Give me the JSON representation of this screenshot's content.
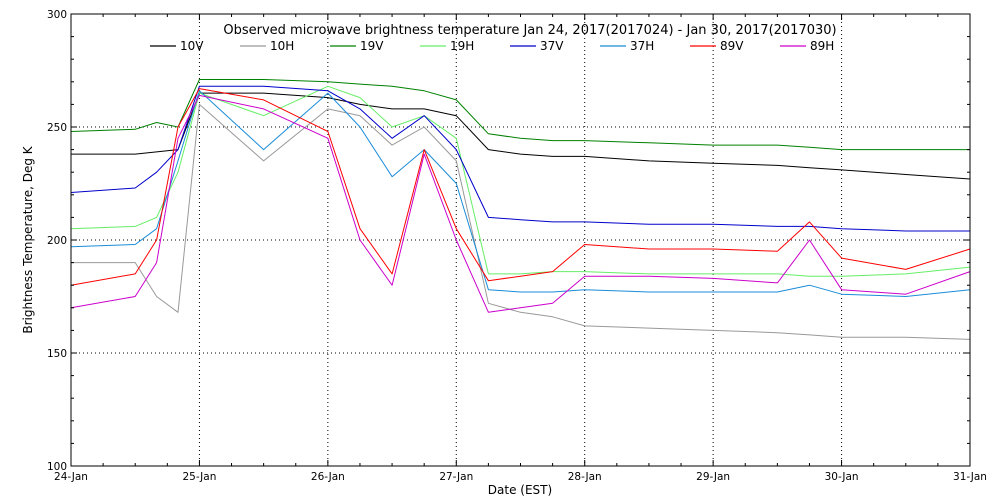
{
  "chart_data": {
    "type": "line",
    "title": "Observed microwave brightness temperature Jan 24, 2017(2017024) - Jan 30, 2017(2017030)",
    "xlabel": "Date (EST)",
    "ylabel": "Brightness Temperature, Deg K",
    "ylim": [
      100,
      300
    ],
    "xlim": [
      "2017-01-24",
      "2017-01-31"
    ],
    "x_ticks": [
      "24-Jan",
      "25-Jan",
      "26-Jan",
      "27-Jan",
      "28-Jan",
      "29-Jan",
      "30-Jan",
      "31-Jan"
    ],
    "y_ticks": [
      100,
      150,
      200,
      250,
      300
    ],
    "grid": true,
    "legend_position": "top",
    "x": [
      "2017-01-24 00:00",
      "2017-01-24 12:00",
      "2017-01-24 16:00",
      "2017-01-24 20:00",
      "2017-01-25 00:00",
      "2017-01-25 12:00",
      "2017-01-26 00:00",
      "2017-01-26 06:00",
      "2017-01-26 12:00",
      "2017-01-26 18:00",
      "2017-01-27 00:00",
      "2017-01-27 06:00",
      "2017-01-27 12:00",
      "2017-01-27 18:00",
      "2017-01-28 00:00",
      "2017-01-28 12:00",
      "2017-01-29 00:00",
      "2017-01-29 12:00",
      "2017-01-29 18:00",
      "2017-01-30 00:00",
      "2017-01-30 12:00",
      "2017-01-31 00:00"
    ],
    "series": [
      {
        "name": "10V",
        "color": "#000000",
        "values": [
          238,
          238,
          239,
          240,
          265,
          265,
          263,
          260,
          258,
          258,
          255,
          240,
          238,
          237,
          237,
          235,
          234,
          233,
          232,
          231,
          229,
          227
        ]
      },
      {
        "name": "10H",
        "color": "#999999",
        "values": [
          190,
          190,
          175,
          168,
          260,
          235,
          258,
          255,
          242,
          250,
          235,
          172,
          168,
          166,
          162,
          161,
          160,
          159,
          158,
          157,
          157,
          156
        ]
      },
      {
        "name": "19V",
        "color": "#008000",
        "values": [
          248,
          249,
          252,
          250,
          271,
          271,
          270,
          269,
          268,
          266,
          262,
          247,
          245,
          244,
          244,
          243,
          242,
          242,
          241,
          240,
          240,
          240
        ]
      },
      {
        "name": "19H",
        "color": "#66ee66",
        "values": [
          205,
          206,
          210,
          230,
          265,
          255,
          268,
          263,
          250,
          255,
          245,
          185,
          185,
          186,
          186,
          185,
          185,
          185,
          184,
          184,
          185,
          188
        ]
      },
      {
        "name": "37V",
        "color": "#0000cc",
        "values": [
          221,
          223,
          230,
          240,
          268,
          268,
          266,
          258,
          245,
          255,
          240,
          210,
          209,
          208,
          208,
          207,
          207,
          206,
          206,
          205,
          204,
          204
        ]
      },
      {
        "name": "37H",
        "color": "#1a8cd8",
        "values": [
          197,
          198,
          205,
          235,
          266,
          240,
          265,
          250,
          228,
          240,
          225,
          178,
          177,
          177,
          178,
          177,
          177,
          177,
          180,
          176,
          175,
          178
        ]
      },
      {
        "name": "89V",
        "color": "#ff0000",
        "values": [
          180,
          185,
          200,
          250,
          267,
          262,
          248,
          205,
          185,
          240,
          205,
          182,
          184,
          186,
          198,
          196,
          196,
          195,
          208,
          192,
          187,
          196
        ]
      },
      {
        "name": "89H",
        "color": "#cc00cc",
        "values": [
          170,
          175,
          190,
          245,
          264,
          258,
          245,
          200,
          180,
          238,
          200,
          168,
          170,
          172,
          184,
          184,
          183,
          181,
          200,
          178,
          176,
          186
        ]
      }
    ]
  }
}
